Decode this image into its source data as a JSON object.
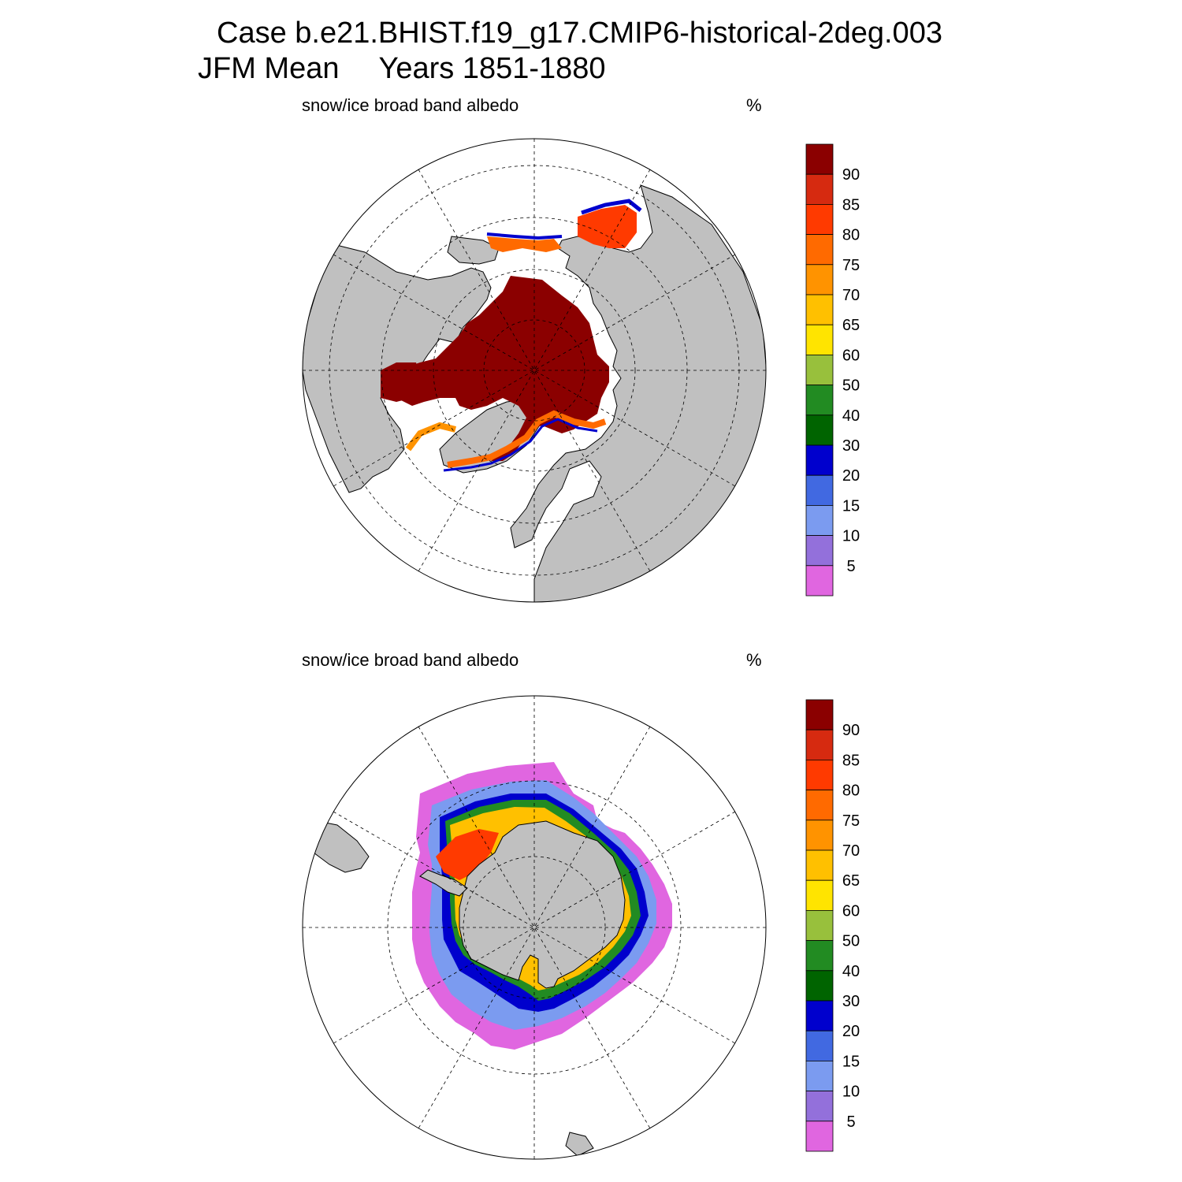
{
  "header": {
    "title_line1": "Case b.e21.BHIST.f19_g17.CMIP6-historical-2deg.003",
    "title_line2_season": "JFM Mean",
    "title_line2_years": "Years 1851-1880"
  },
  "panels": [
    {
      "id": "north",
      "variable_label": "snow/ice broad band albedo",
      "units": "%",
      "hemisphere": "Northern",
      "projection": "polar stereographic",
      "land_color": "#c0c0c0",
      "ocean_color": "#ffffff"
    },
    {
      "id": "south",
      "variable_label": "snow/ice broad band albedo",
      "units": "%",
      "hemisphere": "Southern",
      "projection": "polar stereographic",
      "land_color": "#c0c0c0",
      "ocean_color": "#ffffff"
    }
  ],
  "colorbar": {
    "tick_labels": [
      "90",
      "85",
      "80",
      "75",
      "70",
      "65",
      "60",
      "50",
      "40",
      "30",
      "20",
      "15",
      "10",
      "5"
    ],
    "colors": [
      "#8b0000",
      "#d62a10",
      "#ff3a00",
      "#ff6a00",
      "#ff9300",
      "#ffc000",
      "#ffe400",
      "#98c03c",
      "#228b22",
      "#006400",
      "#0000cd",
      "#4169e1",
      "#7b9bf0",
      "#9370db",
      "#e066e0"
    ]
  }
}
